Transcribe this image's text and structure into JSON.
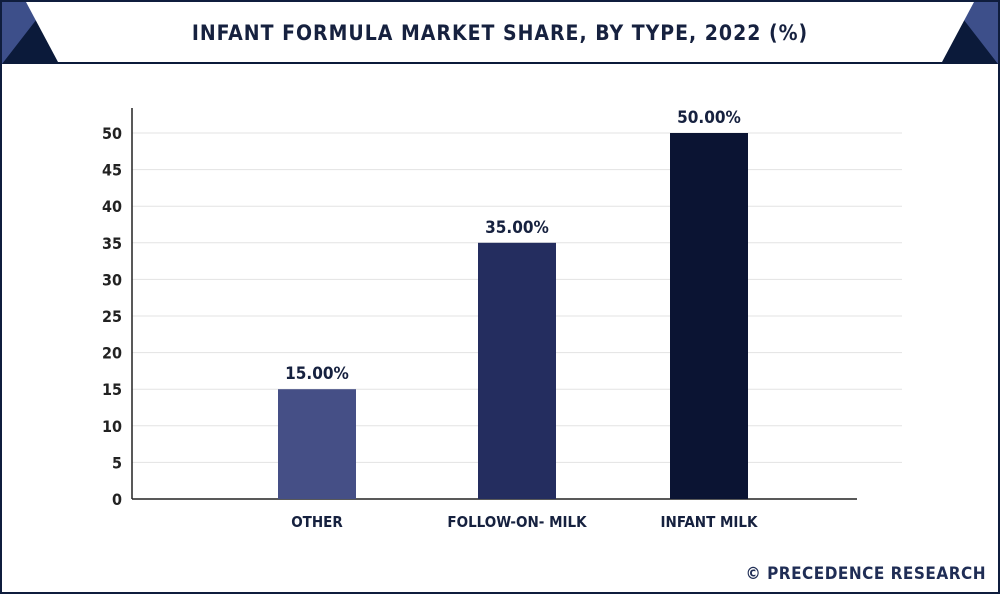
{
  "header": {
    "title": "INFANT FORMULA MARKET SHARE, BY TYPE, 2022 (%)"
  },
  "footer": {
    "credit": "© PRECEDENCE RESEARCH"
  },
  "colors": {
    "frame": "#0f1d3d",
    "header_bg": "#0b1a3a",
    "corner_accent": "#3d4f8a",
    "grid": "#e3e3e3",
    "axis": "#222222",
    "text": "#16213f"
  },
  "chart_data": {
    "type": "bar",
    "title": "INFANT FORMULA MARKET SHARE, BY TYPE, 2022 (%)",
    "xlabel": "",
    "ylabel": "",
    "categories": [
      "OTHER",
      "FOLLOW-ON- MILK",
      "INFANT MILK"
    ],
    "values": [
      15,
      35,
      50
    ],
    "data_labels": [
      "15.00%",
      "35.00%",
      "50.00%"
    ],
    "bar_colors": [
      "#454f86",
      "#242d5f",
      "#0b1433"
    ],
    "ylim": [
      0,
      50
    ],
    "yticks": [
      0,
      5,
      10,
      15,
      20,
      25,
      30,
      35,
      40,
      45,
      50
    ],
    "grid": true,
    "legend": "none"
  }
}
